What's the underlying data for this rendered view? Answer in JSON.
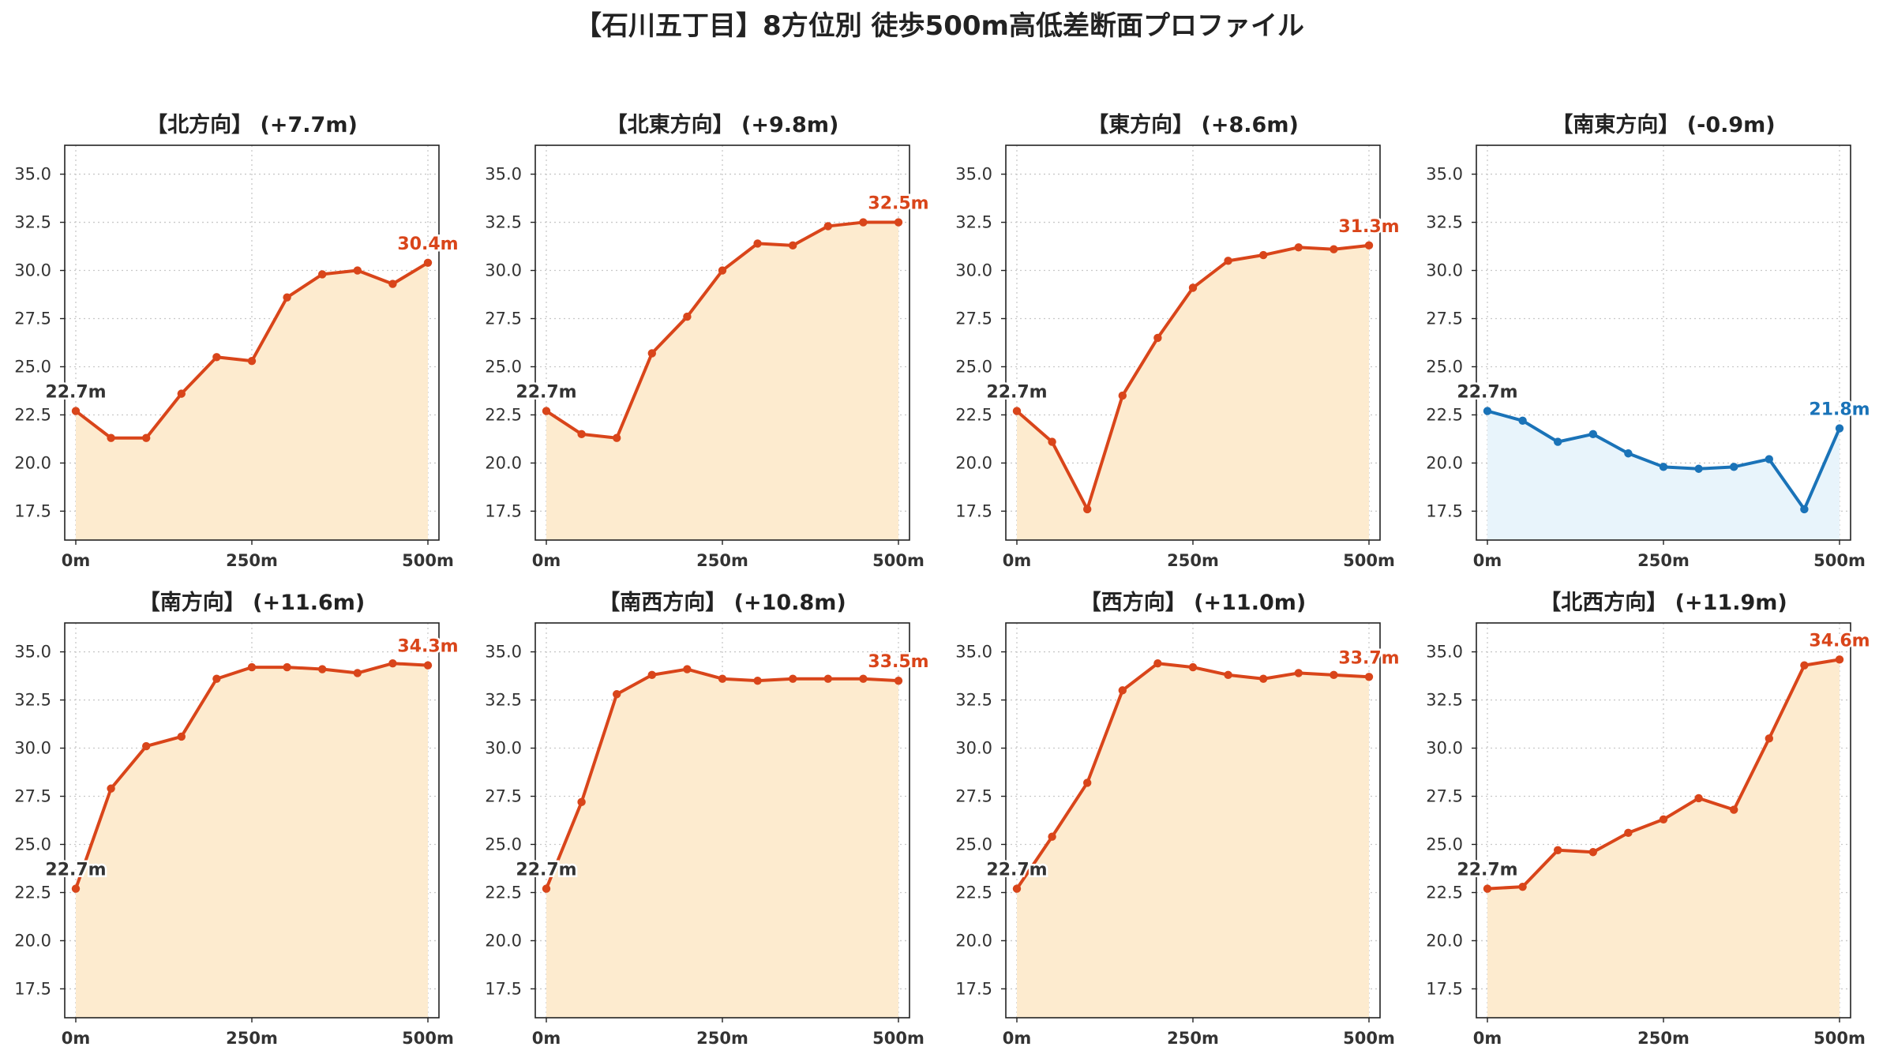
{
  "title": "【石川五丁目】8方位別 徒歩500m高低差断面プロファイル",
  "colors": {
    "up_line": "#d9451a",
    "up_fill": "#fdebcf",
    "down_line": "#1a73b8",
    "down_fill": "#e8f4fb",
    "start_label": "#333333"
  },
  "chart_data": [
    {
      "type": "area",
      "title": "【北方向】 (+7.7m)",
      "x": [
        0,
        50,
        100,
        150,
        200,
        250,
        300,
        350,
        400,
        450,
        500
      ],
      "values": [
        22.7,
        21.3,
        21.3,
        23.6,
        25.5,
        25.3,
        28.6,
        29.8,
        30.0,
        29.3,
        30.4
      ],
      "trend": "up",
      "start_label": "22.7m",
      "end_label": "30.4m",
      "ylim": [
        16.0,
        36.5
      ],
      "yticks": [
        "17.5",
        "20.0",
        "22.5",
        "25.0",
        "27.5",
        "30.0",
        "32.5",
        "35.0"
      ],
      "xticks": [
        "0m",
        "250m",
        "500m"
      ],
      "grid": true
    },
    {
      "type": "area",
      "title": "【北東方向】 (+9.8m)",
      "x": [
        0,
        50,
        100,
        150,
        200,
        250,
        300,
        350,
        400,
        450,
        500
      ],
      "values": [
        22.7,
        21.5,
        21.3,
        25.7,
        27.6,
        30.0,
        31.4,
        31.3,
        32.3,
        32.5,
        32.5
      ],
      "trend": "up",
      "start_label": "22.7m",
      "end_label": "32.5m",
      "ylim": [
        16.0,
        36.5
      ],
      "yticks": [
        "17.5",
        "20.0",
        "22.5",
        "25.0",
        "27.5",
        "30.0",
        "32.5",
        "35.0"
      ],
      "xticks": [
        "0m",
        "250m",
        "500m"
      ],
      "grid": true
    },
    {
      "type": "area",
      "title": "【東方向】 (+8.6m)",
      "x": [
        0,
        50,
        100,
        150,
        200,
        250,
        300,
        350,
        400,
        450,
        500
      ],
      "values": [
        22.7,
        21.1,
        17.6,
        23.5,
        26.5,
        29.1,
        30.5,
        30.8,
        31.2,
        31.1,
        31.3
      ],
      "trend": "up",
      "start_label": "22.7m",
      "end_label": "31.3m",
      "ylim": [
        16.0,
        36.5
      ],
      "yticks": [
        "17.5",
        "20.0",
        "22.5",
        "25.0",
        "27.5",
        "30.0",
        "32.5",
        "35.0"
      ],
      "xticks": [
        "0m",
        "250m",
        "500m"
      ],
      "grid": true
    },
    {
      "type": "area",
      "title": "【南東方向】 (-0.9m)",
      "x": [
        0,
        50,
        100,
        150,
        200,
        250,
        300,
        350,
        400,
        450,
        500
      ],
      "values": [
        22.7,
        22.2,
        21.1,
        21.5,
        20.5,
        19.8,
        19.7,
        19.8,
        20.2,
        17.6,
        21.8
      ],
      "trend": "down",
      "start_label": "22.7m",
      "end_label": "21.8m",
      "ylim": [
        16.0,
        36.5
      ],
      "yticks": [
        "17.5",
        "20.0",
        "22.5",
        "25.0",
        "27.5",
        "30.0",
        "32.5",
        "35.0"
      ],
      "xticks": [
        "0m",
        "250m",
        "500m"
      ],
      "grid": true
    },
    {
      "type": "area",
      "title": "【南方向】 (+11.6m)",
      "x": [
        0,
        50,
        100,
        150,
        200,
        250,
        300,
        350,
        400,
        450,
        500
      ],
      "values": [
        22.7,
        27.9,
        30.1,
        30.6,
        33.6,
        34.2,
        34.2,
        34.1,
        33.9,
        34.4,
        34.3
      ],
      "trend": "up",
      "start_label": "22.7m",
      "end_label": "34.3m",
      "ylim": [
        16.0,
        36.5
      ],
      "yticks": [
        "17.5",
        "20.0",
        "22.5",
        "25.0",
        "27.5",
        "30.0",
        "32.5",
        "35.0"
      ],
      "xticks": [
        "0m",
        "250m",
        "500m"
      ],
      "grid": true
    },
    {
      "type": "area",
      "title": "【南西方向】 (+10.8m)",
      "x": [
        0,
        50,
        100,
        150,
        200,
        250,
        300,
        350,
        400,
        450,
        500
      ],
      "values": [
        22.7,
        27.2,
        32.8,
        33.8,
        34.1,
        33.6,
        33.5,
        33.6,
        33.6,
        33.6,
        33.5
      ],
      "trend": "up",
      "start_label": "22.7m",
      "end_label": "33.5m",
      "ylim": [
        16.0,
        36.5
      ],
      "yticks": [
        "17.5",
        "20.0",
        "22.5",
        "25.0",
        "27.5",
        "30.0",
        "32.5",
        "35.0"
      ],
      "xticks": [
        "0m",
        "250m",
        "500m"
      ],
      "grid": true
    },
    {
      "type": "area",
      "title": "【西方向】 (+11.0m)",
      "x": [
        0,
        50,
        100,
        150,
        200,
        250,
        300,
        350,
        400,
        450,
        500
      ],
      "values": [
        22.7,
        25.4,
        28.2,
        33.0,
        34.4,
        34.2,
        33.8,
        33.6,
        33.9,
        33.8,
        33.7
      ],
      "trend": "up",
      "start_label": "22.7m",
      "end_label": "33.7m",
      "ylim": [
        16.0,
        36.5
      ],
      "yticks": [
        "17.5",
        "20.0",
        "22.5",
        "25.0",
        "27.5",
        "30.0",
        "32.5",
        "35.0"
      ],
      "xticks": [
        "0m",
        "250m",
        "500m"
      ],
      "grid": true
    },
    {
      "type": "area",
      "title": "【北西方向】 (+11.9m)",
      "x": [
        0,
        50,
        100,
        150,
        200,
        250,
        300,
        350,
        400,
        450,
        500
      ],
      "values": [
        22.7,
        22.8,
        24.7,
        24.6,
        25.6,
        26.3,
        27.4,
        26.8,
        30.5,
        34.3,
        34.6
      ],
      "trend": "up",
      "start_label": "22.7m",
      "end_label": "34.6m",
      "ylim": [
        16.0,
        36.5
      ],
      "yticks": [
        "17.5",
        "20.0",
        "22.5",
        "25.0",
        "27.5",
        "30.0",
        "32.5",
        "35.0"
      ],
      "xticks": [
        "0m",
        "250m",
        "500m"
      ],
      "grid": true
    }
  ]
}
